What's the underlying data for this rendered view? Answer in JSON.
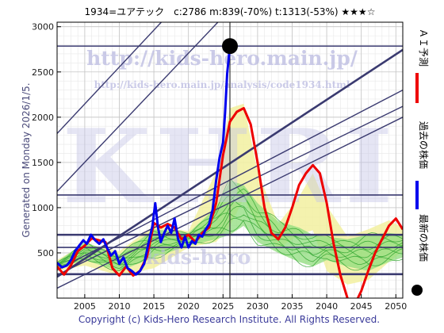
{
  "chart_data": {
    "type": "line",
    "title": "1934=ユアテック　c:2786  m:839(-70%)  t:1313(-53%)  ★★★☆",
    "side_label": "Generated on Monday 2026/1/5.",
    "copyright": "Copyright (c) Kids-Hero Research Institute. All Rights Reserved.",
    "watermarks": {
      "url_main": "http://kids-hero.main.jp/",
      "url_sub": "http://kids-hero.main.jp/analysis/code1934.html",
      "logo": "KHRI",
      "logo_sub": "kids-hero"
    },
    "xlim": [
      2001,
      2051
    ],
    "ylim": [
      0,
      3050
    ],
    "x_ticks": [
      2005,
      2010,
      2015,
      2020,
      2025,
      2030,
      2035,
      2040,
      2045,
      2050
    ],
    "y_ticks": [
      500,
      1000,
      1500,
      2000,
      2500,
      3000
    ],
    "grid": true,
    "legend_placement": "right",
    "legend": [
      {
        "label": "ＡＩ予測",
        "color": "#ee0000",
        "kind": "line"
      },
      {
        "label": "過去の株価",
        "color": "#0000ee",
        "kind": "line"
      },
      {
        "label": "最新の株価",
        "color": "#000000",
        "kind": "dot"
      }
    ],
    "current_point": {
      "x": 2026.0,
      "y": 2786
    },
    "vline_x": 2026.0,
    "hlines": [
      {
        "y": 2786,
        "weight": "thin"
      },
      {
        "y": 1140,
        "weight": "thin"
      },
      {
        "y": 700,
        "weight": "bold"
      },
      {
        "y": 560,
        "weight": "thin"
      },
      {
        "y": 265,
        "weight": "bold"
      }
    ],
    "trend_lines": [
      {
        "from": [
          2001,
          235
        ],
        "to": [
          2051,
          2745
        ],
        "weight": "bold"
      },
      {
        "from": [
          2001,
          1180
        ],
        "to": [
          2051,
          5200
        ],
        "weight": "thin"
      },
      {
        "from": [
          2001,
          1820
        ],
        "to": [
          2051,
          5900
        ],
        "weight": "thin"
      },
      {
        "from": [
          2001,
          310
        ],
        "to": [
          2051,
          2300
        ],
        "weight": "thin"
      },
      {
        "from": [
          2001,
          255
        ],
        "to": [
          2051,
          2120
        ],
        "weight": "thin"
      },
      {
        "from": [
          2001,
          110
        ],
        "to": [
          2051,
          2000
        ],
        "weight": "thin"
      }
    ],
    "series": [
      {
        "name": "過去の株価",
        "color": "#0000ee",
        "points": [
          [
            2001.0,
            390
          ],
          [
            2001.7,
            340
          ],
          [
            2002.4,
            360
          ],
          [
            2003.0,
            420
          ],
          [
            2003.6,
            520
          ],
          [
            2004.2,
            580
          ],
          [
            2004.8,
            640
          ],
          [
            2005.3,
            600
          ],
          [
            2005.9,
            700
          ],
          [
            2006.5,
            640
          ],
          [
            2007.1,
            600
          ],
          [
            2007.7,
            650
          ],
          [
            2008.2,
            560
          ],
          [
            2008.8,
            470
          ],
          [
            2009.4,
            520
          ],
          [
            2010.0,
            380
          ],
          [
            2010.6,
            450
          ],
          [
            2011.2,
            330
          ],
          [
            2011.8,
            300
          ],
          [
            2012.4,
            260
          ],
          [
            2013.0,
            300
          ],
          [
            2013.6,
            380
          ],
          [
            2014.2,
            600
          ],
          [
            2014.8,
            800
          ],
          [
            2015.2,
            1050
          ],
          [
            2015.6,
            780
          ],
          [
            2016.0,
            620
          ],
          [
            2016.5,
            720
          ],
          [
            2017.0,
            800
          ],
          [
            2017.5,
            720
          ],
          [
            2018.0,
            880
          ],
          [
            2018.5,
            650
          ],
          [
            2019.0,
            560
          ],
          [
            2019.5,
            680
          ],
          [
            2020.0,
            560
          ],
          [
            2020.5,
            630
          ],
          [
            2021.0,
            600
          ],
          [
            2021.5,
            700
          ],
          [
            2022.0,
            680
          ],
          [
            2022.5,
            760
          ],
          [
            2023.0,
            820
          ],
          [
            2023.5,
            980
          ],
          [
            2024.0,
            1300
          ],
          [
            2024.5,
            1550
          ],
          [
            2025.0,
            1720
          ],
          [
            2025.3,
            2050
          ],
          [
            2025.6,
            2480
          ],
          [
            2026.0,
            2786
          ]
        ]
      },
      {
        "name": "ＡＩ予測",
        "color": "#ee0000",
        "points": [
          [
            2001.0,
            350
          ],
          [
            2002.0,
            260
          ],
          [
            2003.0,
            360
          ],
          [
            2004.0,
            520
          ],
          [
            2005.0,
            580
          ],
          [
            2006.0,
            660
          ],
          [
            2007.0,
            640
          ],
          [
            2008.0,
            620
          ],
          [
            2009.0,
            330
          ],
          [
            2010.0,
            250
          ],
          [
            2011.0,
            350
          ],
          [
            2012.0,
            250
          ],
          [
            2013.0,
            300
          ],
          [
            2014.0,
            460
          ],
          [
            2015.0,
            830
          ],
          [
            2016.0,
            780
          ],
          [
            2017.0,
            820
          ],
          [
            2018.0,
            780
          ],
          [
            2019.0,
            650
          ],
          [
            2020.0,
            700
          ],
          [
            2021.0,
            620
          ],
          [
            2022.0,
            720
          ],
          [
            2023.0,
            780
          ],
          [
            2024.0,
            1050
          ],
          [
            2025.0,
            1580
          ],
          [
            2026.0,
            1950
          ],
          [
            2027.0,
            2060
          ],
          [
            2028.0,
            2100
          ],
          [
            2029.0,
            1920
          ],
          [
            2030.0,
            1500
          ],
          [
            2031.0,
            1000
          ],
          [
            2032.0,
            720
          ],
          [
            2033.0,
            650
          ],
          [
            2034.0,
            780
          ],
          [
            2035.0,
            1000
          ],
          [
            2036.0,
            1250
          ],
          [
            2037.0,
            1380
          ],
          [
            2038.0,
            1470
          ],
          [
            2039.0,
            1380
          ],
          [
            2040.0,
            1050
          ],
          [
            2041.0,
            600
          ],
          [
            2042.0,
            250
          ],
          [
            2043.0,
            0
          ],
          [
            2044.0,
            -80
          ],
          [
            2045.0,
            80
          ],
          [
            2046.0,
            300
          ],
          [
            2047.0,
            500
          ],
          [
            2048.0,
            650
          ],
          [
            2049.0,
            800
          ],
          [
            2050.0,
            880
          ],
          [
            2051.0,
            760
          ]
        ]
      }
    ],
    "yellow_band": {
      "x": [
        2001,
        2005,
        2010,
        2015,
        2020,
        2024,
        2026,
        2028,
        2030,
        2033,
        2036,
        2038,
        2040,
        2043,
        2046,
        2049,
        2051
      ],
      "low": [
        300,
        360,
        250,
        330,
        560,
        620,
        800,
        1100,
        800,
        550,
        700,
        750,
        300,
        150,
        200,
        400,
        520
      ],
      "high": [
        420,
        600,
        520,
        800,
        740,
        1400,
        2100,
        2150,
        1400,
        820,
        1120,
        1380,
        1020,
        680,
        760,
        860,
        780
      ]
    },
    "green_band": {
      "x": [
        2001,
        2005,
        2010,
        2015,
        2020,
        2024,
        2026,
        2028,
        2030,
        2033,
        2036,
        2038,
        2040,
        2043,
        2046,
        2049,
        2051
      ],
      "low": [
        330,
        420,
        300,
        450,
        580,
        650,
        700,
        800,
        620,
        500,
        400,
        350,
        420,
        350,
        300,
        400,
        450
      ],
      "high": [
        400,
        620,
        480,
        760,
        720,
        1000,
        1300,
        1250,
        1050,
        850,
        780,
        700,
        680,
        650,
        700,
        720,
        700
      ]
    }
  }
}
